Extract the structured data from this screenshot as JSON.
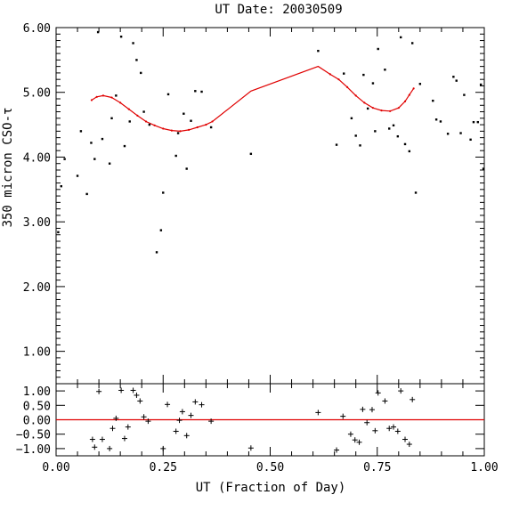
{
  "chart_data": [
    {
      "type": "scatter",
      "panel": "top",
      "title": "UT Date: 20030509",
      "ylabel": "350 micron CSO-τ",
      "xlim": [
        0.0,
        1.0
      ],
      "ylim": [
        0.5,
        6.0
      ],
      "yticks": [
        1.0,
        2.0,
        3.0,
        4.0,
        5.0,
        6.0
      ],
      "ytick_labels": [
        "1.00",
        "2.00",
        "3.00",
        "4.00",
        "5.00",
        "6.00"
      ],
      "grid": false,
      "points": [
        [
          0.005,
          2.84
        ],
        [
          0.012,
          3.55
        ],
        [
          0.02,
          3.97
        ],
        [
          0.05,
          3.71
        ],
        [
          0.058,
          4.4
        ],
        [
          0.072,
          3.43
        ],
        [
          0.082,
          4.22
        ],
        [
          0.09,
          3.97
        ],
        [
          0.098,
          5.93
        ],
        [
          0.108,
          4.28
        ],
        [
          0.125,
          3.9
        ],
        [
          0.13,
          4.6
        ],
        [
          0.14,
          4.95
        ],
        [
          0.152,
          5.86
        ],
        [
          0.16,
          4.17
        ],
        [
          0.172,
          4.55
        ],
        [
          0.18,
          5.76
        ],
        [
          0.188,
          5.5
        ],
        [
          0.198,
          5.3
        ],
        [
          0.205,
          4.7
        ],
        [
          0.218,
          4.5
        ],
        [
          0.235,
          2.53
        ],
        [
          0.245,
          2.87
        ],
        [
          0.25,
          3.45
        ],
        [
          0.262,
          4.97
        ],
        [
          0.28,
          4.02
        ],
        [
          0.285,
          4.37
        ],
        [
          0.298,
          4.67
        ],
        [
          0.305,
          3.82
        ],
        [
          0.315,
          4.56
        ],
        [
          0.325,
          5.02
        ],
        [
          0.34,
          5.01
        ],
        [
          0.362,
          4.46
        ],
        [
          0.455,
          4.05
        ],
        [
          0.612,
          5.64
        ],
        [
          0.655,
          4.19
        ],
        [
          0.672,
          5.29
        ],
        [
          0.69,
          4.6
        ],
        [
          0.7,
          4.33
        ],
        [
          0.71,
          4.18
        ],
        [
          0.718,
          5.27
        ],
        [
          0.728,
          4.75
        ],
        [
          0.74,
          5.14
        ],
        [
          0.745,
          4.4
        ],
        [
          0.752,
          5.67
        ],
        [
          0.768,
          5.35
        ],
        [
          0.778,
          4.44
        ],
        [
          0.788,
          4.49
        ],
        [
          0.798,
          4.32
        ],
        [
          0.805,
          5.85
        ],
        [
          0.815,
          4.2
        ],
        [
          0.825,
          4.09
        ],
        [
          0.832,
          5.76
        ],
        [
          0.84,
          3.45
        ],
        [
          0.85,
          5.13
        ],
        [
          0.88,
          4.87
        ],
        [
          0.888,
          4.58
        ],
        [
          0.898,
          4.55
        ],
        [
          0.915,
          4.36
        ],
        [
          0.928,
          5.24
        ],
        [
          0.935,
          5.18
        ],
        [
          0.945,
          4.37
        ],
        [
          0.953,
          4.96
        ],
        [
          0.968,
          4.27
        ],
        [
          0.975,
          4.54
        ],
        [
          0.985,
          4.54
        ],
        [
          0.992,
          5.12
        ],
        [
          0.998,
          3.82
        ]
      ],
      "fit": [
        [
          0.083,
          4.88
        ],
        [
          0.095,
          4.93
        ],
        [
          0.11,
          4.95
        ],
        [
          0.13,
          4.92
        ],
        [
          0.15,
          4.84
        ],
        [
          0.17,
          4.74
        ],
        [
          0.19,
          4.64
        ],
        [
          0.21,
          4.55
        ],
        [
          0.23,
          4.49
        ],
        [
          0.25,
          4.44
        ],
        [
          0.27,
          4.41
        ],
        [
          0.29,
          4.4
        ],
        [
          0.31,
          4.42
        ],
        [
          0.33,
          4.46
        ],
        [
          0.35,
          4.5
        ],
        [
          0.365,
          4.55
        ],
        [
          0.455,
          5.02
        ],
        [
          0.612,
          5.4
        ],
        [
          0.64,
          5.28
        ],
        [
          0.66,
          5.2
        ],
        [
          0.68,
          5.08
        ],
        [
          0.7,
          4.95
        ],
        [
          0.72,
          4.84
        ],
        [
          0.74,
          4.76
        ],
        [
          0.76,
          4.72
        ],
        [
          0.78,
          4.71
        ],
        [
          0.8,
          4.76
        ],
        [
          0.815,
          4.86
        ],
        [
          0.825,
          4.96
        ],
        [
          0.835,
          5.06
        ]
      ]
    },
    {
      "type": "scatter",
      "panel": "bottom",
      "xlabel": "UT (Fraction of Day)",
      "ylabel": "",
      "xlim": [
        0.0,
        1.0
      ],
      "ylim": [
        -1.25,
        1.25
      ],
      "xticks": [
        0.0,
        0.25,
        0.5,
        0.75,
        1.0
      ],
      "xtick_labels": [
        "0.00",
        "0.25",
        "0.50",
        "0.75",
        "1.00"
      ],
      "yticks": [
        -1.0,
        -0.5,
        0.0,
        0.5,
        1.0
      ],
      "ytick_labels": [
        "−1.00",
        "−0.50",
        "0.00",
        "0.50",
        "1.00"
      ],
      "zero_line": 0.0,
      "residuals": [
        [
          0.085,
          -0.68
        ],
        [
          0.09,
          -0.95
        ],
        [
          0.1,
          0.98
        ],
        [
          0.108,
          -0.68
        ],
        [
          0.125,
          -1.0
        ],
        [
          0.132,
          -0.3
        ],
        [
          0.14,
          0.05
        ],
        [
          0.152,
          1.02
        ],
        [
          0.16,
          -0.65
        ],
        [
          0.168,
          -0.25
        ],
        [
          0.18,
          1.02
        ],
        [
          0.188,
          0.85
        ],
        [
          0.196,
          0.65
        ],
        [
          0.205,
          0.1
        ],
        [
          0.215,
          -0.05
        ],
        [
          0.25,
          -1.0
        ],
        [
          0.26,
          0.53
        ],
        [
          0.28,
          -0.4
        ],
        [
          0.288,
          -0.02
        ],
        [
          0.295,
          0.28
        ],
        [
          0.305,
          -0.55
        ],
        [
          0.315,
          0.15
        ],
        [
          0.325,
          0.62
        ],
        [
          0.34,
          0.52
        ],
        [
          0.362,
          -0.05
        ],
        [
          0.455,
          -0.98
        ],
        [
          0.612,
          0.25
        ],
        [
          0.655,
          -1.05
        ],
        [
          0.67,
          0.12
        ],
        [
          0.688,
          -0.5
        ],
        [
          0.698,
          -0.7
        ],
        [
          0.708,
          -0.78
        ],
        [
          0.716,
          0.36
        ],
        [
          0.726,
          -0.1
        ],
        [
          0.738,
          0.35
        ],
        [
          0.745,
          -0.38
        ],
        [
          0.752,
          0.93
        ],
        [
          0.768,
          0.65
        ],
        [
          0.778,
          -0.3
        ],
        [
          0.788,
          -0.25
        ],
        [
          0.798,
          -0.4
        ],
        [
          0.805,
          1.0
        ],
        [
          0.815,
          -0.68
        ],
        [
          0.825,
          -0.85
        ],
        [
          0.832,
          0.7
        ]
      ]
    }
  ]
}
